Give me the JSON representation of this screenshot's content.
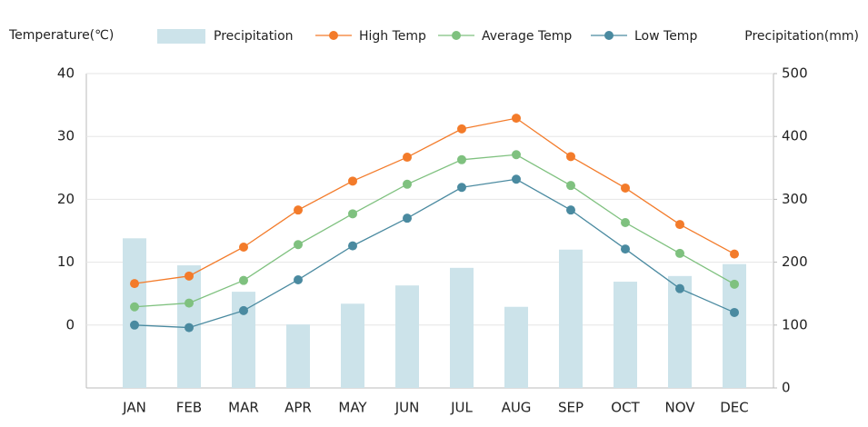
{
  "chart_data": {
    "type": "combo",
    "y_label": "Temperature(℃)",
    "y2_label": "Precipitation(mm)",
    "categories": [
      "JAN",
      "FEB",
      "MAR",
      "APR",
      "MAY",
      "JUN",
      "JUL",
      "AUG",
      "SEP",
      "OCT",
      "NOV",
      "DEC"
    ],
    "series": [
      {
        "name": "Precipitation",
        "type": "bar",
        "axis": "y2",
        "color": "#cce3ea",
        "values": [
          238,
          195,
          153,
          101,
          134,
          163,
          191,
          129,
          220,
          169,
          178,
          197
        ]
      },
      {
        "name": "High Temp",
        "type": "line",
        "color": "#f37b2a",
        "values": [
          6.6,
          7.8,
          12.4,
          18.3,
          22.9,
          26.7,
          31.2,
          32.9,
          26.8,
          21.8,
          16.0,
          11.3
        ]
      },
      {
        "name": "Average Temp",
        "type": "line",
        "color": "#7fc17f",
        "values": [
          2.9,
          3.5,
          7.1,
          12.8,
          17.7,
          22.4,
          26.3,
          27.1,
          22.2,
          16.3,
          11.4,
          6.5
        ]
      },
      {
        "name": "Low Temp",
        "type": "line",
        "color": "#4a8aa0",
        "values": [
          0.0,
          -0.4,
          2.3,
          7.2,
          12.6,
          17.0,
          21.9,
          23.2,
          18.3,
          12.1,
          5.8,
          2.0
        ]
      }
    ],
    "ylim": [
      -10,
      40
    ],
    "yticks": [
      0,
      10,
      20,
      30,
      40
    ],
    "y2lim": [
      0,
      500
    ],
    "y2ticks": [
      0,
      100,
      200,
      300,
      400,
      500
    ],
    "grid": true
  }
}
